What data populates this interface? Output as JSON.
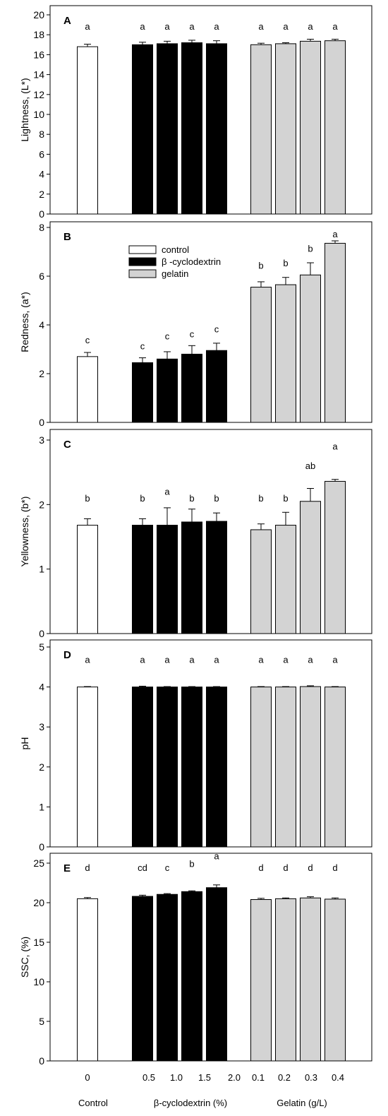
{
  "colors": {
    "control": "#ffffff",
    "cyclodextrin": "#000000",
    "gelatin": "#d3d3d3",
    "stroke": "#000000"
  },
  "legend": {
    "items": [
      {
        "label": "control",
        "color": "#ffffff"
      },
      {
        "label": "β -cyclodextrin",
        "color": "#000000"
      },
      {
        "label": "gelatin",
        "color": "#d3d3d3"
      }
    ]
  },
  "x_axis": {
    "tick_labels": [
      "0",
      "0.5",
      "1.0",
      "1.5",
      "2.0",
      "0.1",
      "0.2",
      "0.3",
      "0.4"
    ],
    "group_labels": [
      "Control",
      "β-cyclodextrin (%)",
      "Gelatin (g/L)"
    ]
  },
  "chart_data": [
    {
      "type": "bar",
      "panel": "A",
      "ylabel": "Lightness, (L*)",
      "ylim": [
        0,
        20
      ],
      "yticks": [
        "0",
        "2",
        "4",
        "6",
        "8",
        "10",
        "12",
        "14",
        "16",
        "18",
        "20"
      ],
      "values": [
        16.8,
        17.0,
        17.1,
        17.2,
        17.1,
        17.0,
        17.1,
        17.35,
        17.4
      ],
      "errors": [
        0.25,
        0.25,
        0.25,
        0.25,
        0.3,
        0.15,
        0.1,
        0.2,
        0.15
      ],
      "letters": [
        "a",
        "a",
        "a",
        "a",
        "a",
        "a",
        "a",
        "a",
        "a"
      ],
      "letter_y": [
        18.5,
        18.5,
        18.5,
        18.5,
        18.5,
        18.5,
        18.5,
        18.5,
        18.5
      ]
    },
    {
      "type": "bar",
      "panel": "B",
      "ylabel": "Redness, (a*)",
      "ylim": [
        0,
        8.5
      ],
      "yticks": [
        "0",
        "2",
        "4",
        "6",
        "8"
      ],
      "show_legend": true,
      "values": [
        2.7,
        2.45,
        2.6,
        2.8,
        2.95,
        5.55,
        5.65,
        6.05,
        7.35
      ],
      "errors": [
        0.17,
        0.2,
        0.3,
        0.35,
        0.3,
        0.22,
        0.3,
        0.5,
        0.1
      ],
      "letters": [
        "c",
        "c",
        "c",
        "c",
        "c",
        "b",
        "b",
        "b",
        "a"
      ],
      "letter_y": [
        3.25,
        3.0,
        3.4,
        3.5,
        3.7,
        6.3,
        6.4,
        7.0,
        7.6
      ]
    },
    {
      "type": "bar",
      "panel": "C",
      "ylabel": "Yellowness, (b*)",
      "ylim": [
        0,
        3.2
      ],
      "yticks": [
        "0",
        "1",
        "2",
        "3"
      ],
      "values": [
        1.68,
        1.68,
        1.68,
        1.73,
        1.74,
        1.61,
        1.68,
        2.05,
        2.36
      ],
      "errors": [
        0.1,
        0.1,
        0.27,
        0.2,
        0.13,
        0.09,
        0.2,
        0.2,
        0.03
      ],
      "letters": [
        "b",
        "b",
        "a",
        "b",
        "b",
        "b",
        "b",
        "ab",
        "a"
      ],
      "letter_y": [
        2.05,
        2.05,
        2.15,
        2.05,
        2.05,
        2.05,
        2.05,
        2.55,
        2.85
      ]
    },
    {
      "type": "bar",
      "panel": "D",
      "ylabel": "pH",
      "ylim": [
        0,
        5.1
      ],
      "yticks": [
        "0",
        "1",
        "2",
        "3",
        "4",
        "5"
      ],
      "values": [
        4.0,
        4.0,
        4.0,
        4.0,
        4.0,
        4.0,
        4.0,
        4.01,
        4.0
      ],
      "errors": [
        0.01,
        0.02,
        0.01,
        0.01,
        0.01,
        0.01,
        0.01,
        0.02,
        0.01
      ],
      "letters": [
        "a",
        "a",
        "a",
        "a",
        "a",
        "a",
        "a",
        "a",
        "a"
      ],
      "letter_y": [
        4.6,
        4.6,
        4.6,
        4.6,
        4.6,
        4.6,
        4.6,
        4.6,
        4.6
      ]
    },
    {
      "type": "bar",
      "panel": "E",
      "ylabel": "SSC, (%)",
      "ylim": [
        0,
        27
      ],
      "yticks": [
        "0",
        "5",
        "10",
        "15",
        "20",
        "25"
      ],
      "show_x_ticklabels": true,
      "values": [
        20.5,
        20.8,
        21.05,
        21.4,
        21.9,
        20.4,
        20.5,
        20.6,
        20.45
      ],
      "errors": [
        0.15,
        0.15,
        0.1,
        0.1,
        0.35,
        0.15,
        0.1,
        0.15,
        0.15
      ],
      "letters": [
        "d",
        "cd",
        "c",
        "b",
        "a",
        "d",
        "d",
        "d",
        "d"
      ],
      "letter_y": [
        24.0,
        24.0,
        24.0,
        24.5,
        25.5,
        24.0,
        24.0,
        24.0,
        24.0
      ]
    }
  ]
}
